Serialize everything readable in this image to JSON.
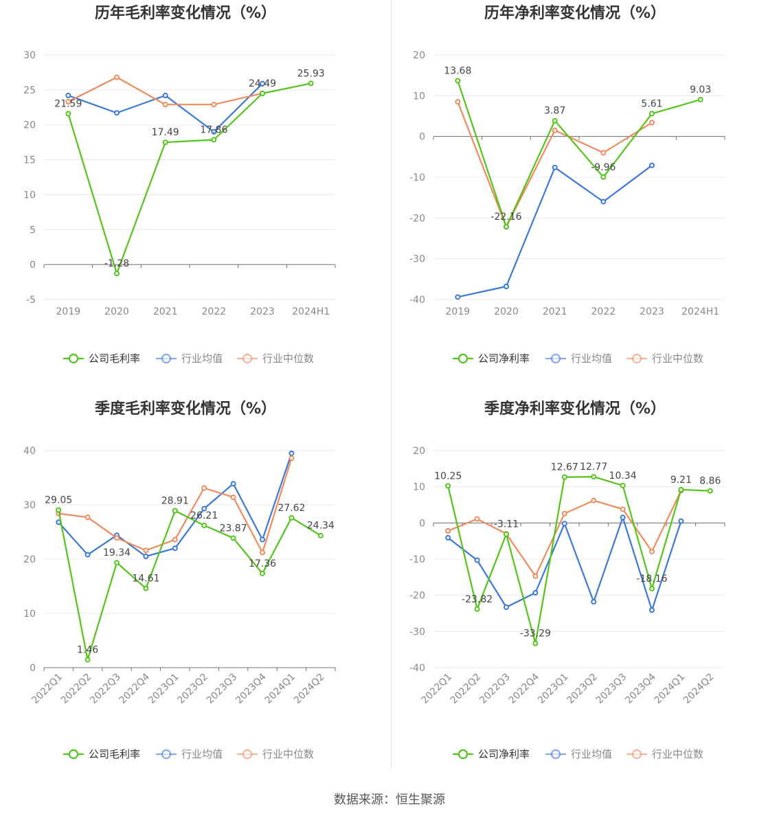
{
  "source": "数据来源：恒生聚源",
  "colors": {
    "company": "#52c41a",
    "avg": "#3a78d8",
    "median": "#f08a5d"
  },
  "chart_data": [
    {
      "type": "line",
      "title": "历年毛利率变化情况（%）",
      "categories": [
        "2019",
        "2020",
        "2021",
        "2022",
        "2023",
        "2024H1"
      ],
      "ylim": [
        -5,
        30
      ],
      "yticks": [
        -5,
        0,
        5,
        10,
        15,
        20,
        25,
        30
      ],
      "rotate_x_labels": false,
      "series": [
        {
          "name": "公司毛利率",
          "key": "company",
          "values": [
            21.59,
            -1.28,
            17.49,
            17.86,
            24.49,
            25.93
          ],
          "labels": [
            "21.59",
            "-1.28",
            "17.49",
            "17.86",
            "24.49",
            "25.93"
          ]
        },
        {
          "name": "行业均值",
          "key": "avg",
          "values": [
            24.2,
            21.7,
            24.2,
            19.0,
            25.9,
            null
          ]
        },
        {
          "name": "行业中位数",
          "key": "median",
          "values": [
            23.3,
            26.8,
            22.9,
            22.9,
            24.5,
            null
          ]
        }
      ]
    },
    {
      "type": "line",
      "title": "历年净利率变化情况（%）",
      "categories": [
        "2019",
        "2020",
        "2021",
        "2022",
        "2023",
        "2024H1"
      ],
      "ylim": [
        -40,
        20
      ],
      "yticks": [
        -40,
        -30,
        -20,
        -10,
        0,
        10,
        20
      ],
      "rotate_x_labels": false,
      "series": [
        {
          "name": "公司净利率",
          "key": "company",
          "values": [
            13.68,
            -22.16,
            3.87,
            -9.96,
            5.61,
            9.03
          ],
          "labels": [
            "13.68",
            "-22.16",
            "3.87",
            "-9.96",
            "5.61",
            "9.03"
          ]
        },
        {
          "name": "行业均值",
          "key": "avg",
          "values": [
            -39.4,
            -36.8,
            -7.6,
            -16.0,
            -7.1,
            null
          ]
        },
        {
          "name": "行业中位数",
          "key": "median",
          "values": [
            8.5,
            -22.2,
            1.5,
            -4.0,
            3.4,
            null
          ]
        }
      ]
    },
    {
      "type": "line",
      "title": "季度毛利率变化情况（%）",
      "categories": [
        "2022Q1",
        "2022Q2",
        "2022Q3",
        "2022Q4",
        "2023Q1",
        "2023Q2",
        "2023Q3",
        "2023Q4",
        "2024Q1",
        "2024Q2"
      ],
      "ylim": [
        0,
        40
      ],
      "yticks": [
        0,
        10,
        20,
        30,
        40
      ],
      "rotate_x_labels": true,
      "series": [
        {
          "name": "公司毛利率",
          "key": "company",
          "values": [
            29.05,
            1.46,
            19.34,
            14.61,
            28.91,
            26.21,
            23.87,
            17.36,
            27.62,
            24.34
          ],
          "labels": [
            "29.05",
            "1.46",
            "19.34",
            "14.61",
            "28.91",
            "26.21",
            "23.87",
            "17.36",
            "27.62",
            "24.34"
          ]
        },
        {
          "name": "行业均值",
          "key": "avg",
          "values": [
            26.8,
            20.8,
            24.4,
            20.5,
            22.0,
            29.3,
            33.9,
            23.6,
            39.5,
            null
          ]
        },
        {
          "name": "行业中位数",
          "key": "median",
          "values": [
            28.4,
            27.7,
            23.9,
            21.6,
            23.6,
            33.1,
            31.4,
            21.2,
            38.6,
            null
          ]
        }
      ]
    },
    {
      "type": "line",
      "title": "季度净利率变化情况（%）",
      "categories": [
        "2022Q1",
        "2022Q2",
        "2022Q3",
        "2022Q4",
        "2023Q1",
        "2023Q2",
        "2023Q3",
        "2023Q4",
        "2024Q1",
        "2024Q2"
      ],
      "ylim": [
        -40,
        20
      ],
      "yticks": [
        -40,
        -30,
        -20,
        -10,
        0,
        10,
        20
      ],
      "rotate_x_labels": true,
      "series": [
        {
          "name": "公司净利率",
          "key": "company",
          "values": [
            10.25,
            -23.82,
            -3.11,
            -33.29,
            12.67,
            12.77,
            10.34,
            -18.16,
            9.21,
            8.86
          ],
          "labels": [
            "10.25",
            "-23.82",
            "-3.11",
            "-33.29",
            "12.67",
            "12.77",
            "10.34",
            "-18.16",
            "9.21",
            "8.86"
          ]
        },
        {
          "name": "行业均值",
          "key": "avg",
          "values": [
            -4.1,
            -10.3,
            -23.3,
            -19.3,
            -0.2,
            -21.8,
            1.5,
            -24.1,
            0.5,
            null
          ]
        },
        {
          "name": "行业中位数",
          "key": "median",
          "values": [
            -2.2,
            1.1,
            -3.0,
            -14.7,
            2.6,
            6.2,
            3.8,
            -7.9,
            8.9,
            null
          ]
        }
      ]
    }
  ]
}
